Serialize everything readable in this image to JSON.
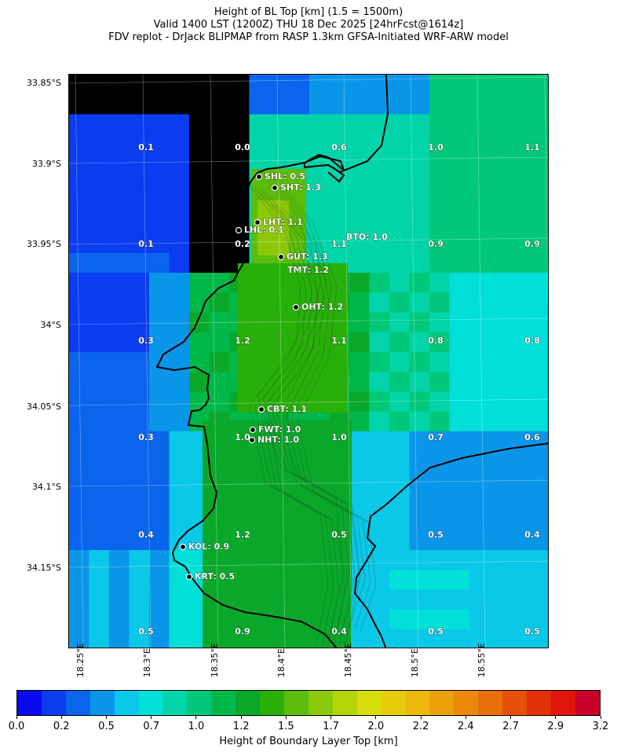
{
  "title": {
    "line1": "Height of BL Top [km] (1.5 = 1500m)",
    "line2": "Valid 1400 LST (1200Z) THU 18 Dec 2025 [24hrFcst@1614z]",
    "line3": "FDV replot - DrJack BLIPMAP from RASP 1.3km GFSA-Initiated WRF-ARW model"
  },
  "axes": {
    "lat_labels": [
      "33.85°S",
      "33.9°S",
      "33.95°S",
      "34°S",
      "34.05°S",
      "34.1°S",
      "34.15°S"
    ],
    "lon_labels": [
      "18.25°E",
      "18.3°E",
      "18.35°E",
      "18.4°E",
      "18.45°E",
      "18.5°E",
      "18.55°E"
    ]
  },
  "grid_values": [
    [
      "0.1",
      "0.0",
      "0.6",
      "1.0",
      "1.1"
    ],
    [
      "0.1",
      "0.2",
      "1.1",
      "0.9",
      "0.9"
    ],
    [
      "0.3",
      "1.2",
      "1.1",
      "0.8",
      "0.8"
    ],
    [
      "0.3",
      "1.0",
      "1.0",
      "0.7",
      "0.6"
    ],
    [
      "0.4",
      "1.2",
      "0.5",
      "0.5",
      "0.4"
    ],
    [
      "0.5",
      "0.9",
      "0.4",
      "0.5",
      "0.5"
    ]
  ],
  "stations": [
    {
      "label": "SHL: 0.5"
    },
    {
      "label": "SHT: 1.3"
    },
    {
      "label": "LHT: 1.1"
    },
    {
      "label": "LHL: 0.1"
    },
    {
      "label": "BTO: 1.0"
    },
    {
      "label": "GUT: 1.3"
    },
    {
      "label": "TMT: 1.2"
    },
    {
      "label": "OHT: 1.2"
    },
    {
      "label": "CBT: 1.1"
    },
    {
      "label": "FWT: 1.0"
    },
    {
      "label": "NHT: 1.0"
    },
    {
      "label": "KOL: 0.9"
    },
    {
      "label": "KRT: 0.5"
    }
  ],
  "colorbar": {
    "label": "Height of Boundary Layer Top [km]",
    "ticks": [
      "0.0",
      "0.2",
      "0.5",
      "0.7",
      "1.0",
      "1.2",
      "1.5",
      "1.7",
      "2.0",
      "2.2",
      "2.4",
      "2.7",
      "2.9",
      "3.2"
    ],
    "colors": [
      "#0a0af0",
      "#0a3cf0",
      "#0a64ec",
      "#0a96e8",
      "#0ac8e8",
      "#00e0d8",
      "#00d4a8",
      "#00c878",
      "#00b84a",
      "#0aa82a",
      "#28b00a",
      "#5cbc0a",
      "#8cc80a",
      "#b4d40a",
      "#d8dc0a",
      "#e8cc0a",
      "#ecb80a",
      "#eca00a",
      "#ec880a",
      "#e8700a",
      "#e8500a",
      "#e4300a",
      "#e0140a",
      "#c8002a"
    ]
  },
  "colors": {
    "coastline": "#000000",
    "station_dot": "#000000",
    "label_text": "#ffffff"
  }
}
